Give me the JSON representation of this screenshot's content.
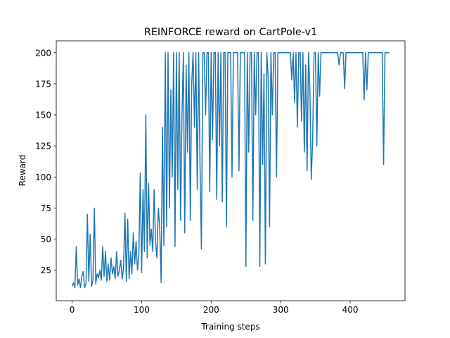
{
  "chart_data": {
    "type": "line",
    "title": "REINFORCE reward on CartPole-v1",
    "x_label": "Training steps",
    "y_label": "Reward",
    "xlim": [
      -22.8,
      478.8
    ],
    "ylim": [
      0.5,
      209.5
    ],
    "xticks": [
      0,
      100,
      200,
      300,
      400
    ],
    "yticks": [
      25,
      50,
      75,
      100,
      125,
      150,
      175,
      200
    ],
    "grid": false,
    "series": [
      {
        "name": "reward",
        "color": "#1f77b4",
        "x": [
          0,
          2,
          4,
          6,
          8,
          10,
          12,
          14,
          16,
          18,
          20,
          22,
          24,
          26,
          28,
          30,
          32,
          34,
          36,
          38,
          40,
          42,
          44,
          46,
          48,
          50,
          52,
          54,
          56,
          58,
          60,
          62,
          64,
          66,
          68,
          70,
          72,
          74,
          76,
          78,
          80,
          82,
          84,
          86,
          88,
          90,
          92,
          94,
          96,
          98,
          100,
          102,
          104,
          106,
          108,
          110,
          112,
          114,
          116,
          118,
          120,
          122,
          124,
          126,
          128,
          130,
          132,
          134,
          136,
          138,
          140,
          142,
          144,
          146,
          148,
          150,
          152,
          154,
          156,
          158,
          160,
          162,
          164,
          166,
          168,
          170,
          172,
          174,
          176,
          178,
          180,
          182,
          184,
          186,
          188,
          190,
          192,
          194,
          196,
          198,
          200,
          202,
          204,
          206,
          208,
          210,
          212,
          214,
          216,
          218,
          220,
          222,
          224,
          226,
          228,
          230,
          232,
          234,
          236,
          238,
          240,
          242,
          244,
          246,
          248,
          250,
          252,
          254,
          256,
          258,
          260,
          262,
          264,
          266,
          268,
          270,
          272,
          274,
          276,
          278,
          280,
          282,
          284,
          286,
          288,
          290,
          292,
          294,
          296,
          298,
          300,
          302,
          304,
          306,
          308,
          310,
          312,
          314,
          316,
          318,
          320,
          322,
          324,
          326,
          328,
          330,
          332,
          334,
          336,
          338,
          340,
          342,
          344,
          346,
          348,
          350,
          352,
          354,
          356,
          358,
          360,
          362,
          364,
          366,
          368,
          370,
          372,
          374,
          376,
          378,
          380,
          382,
          384,
          386,
          388,
          390,
          392,
          394,
          396,
          398,
          400,
          402,
          404,
          406,
          408,
          410,
          412,
          414,
          416,
          418,
          420,
          422,
          424,
          426,
          428,
          430,
          432,
          434,
          436,
          438,
          440,
          442,
          444,
          446,
          448,
          450,
          452,
          454,
          456
        ],
        "values": [
          12,
          15,
          11,
          44,
          13,
          18,
          11,
          20,
          24,
          11,
          14,
          70,
          16,
          54,
          12,
          17,
          75,
          14,
          22,
          19,
          25,
          17,
          44,
          20,
          40,
          16,
          30,
          17,
          35,
          22,
          28,
          18,
          40,
          20,
          25,
          33,
          18,
          27,
          71,
          16,
          66,
          18,
          40,
          22,
          55,
          30,
          48,
          25,
          38,
          103,
          23,
          90,
          40,
          150,
          35,
          95,
          45,
          58,
          40,
          90,
          48,
          35,
          75,
          60,
          15,
          140,
          45,
          200,
          60,
          200,
          75,
          170,
          100,
          200,
          44,
          200,
          90,
          200,
          65,
          148,
          200,
          55,
          190,
          120,
          200,
          65,
          175,
          200,
          140,
          200,
          90,
          200,
          110,
          42,
          200,
          200,
          150,
          200,
          200,
          88,
          200,
          130,
          200,
          200,
          82,
          200,
          125,
          200,
          80,
          200,
          200,
          60,
          200,
          200,
          200,
          100,
          200,
          200,
          200,
          200,
          105,
          200,
          200,
          200,
          200,
          28,
          200,
          120,
          200,
          200,
          65,
          200,
          150,
          200,
          200,
          28,
          200,
          110,
          183,
          30,
          200,
          180,
          60,
          200,
          150,
          200,
          200,
          100,
          200,
          200,
          200,
          200,
          200,
          200,
          200,
          200,
          200,
          200,
          178,
          200,
          160,
          200,
          140,
          200,
          200,
          145,
          200,
          120,
          190,
          105,
          200,
          170,
          98,
          130,
          200,
          200,
          125,
          200,
          165,
          200,
          200,
          200,
          200,
          200,
          200,
          200,
          200,
          200,
          200,
          200,
          200,
          200,
          190,
          200,
          200,
          200,
          171,
          200,
          200,
          200,
          200,
          200,
          200,
          200,
          200,
          200,
          200,
          200,
          200,
          200,
          162,
          200,
          170,
          200,
          200,
          200,
          200,
          200,
          200,
          200,
          200,
          200,
          200,
          200,
          110,
          200,
          200,
          200,
          200
        ]
      }
    ]
  }
}
